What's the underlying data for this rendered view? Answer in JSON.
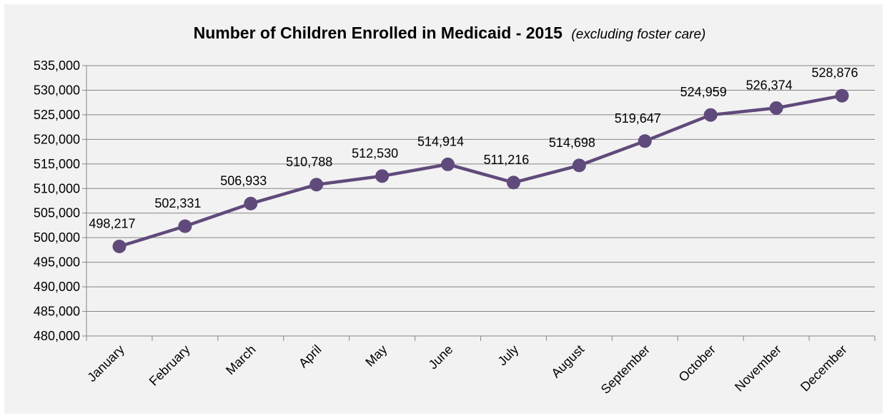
{
  "chart_data": {
    "type": "line",
    "title": "Number of Children  Enrolled  in Medicaid  - 2015",
    "subtitle": "(excluding foster care)",
    "xlabel": "",
    "ylabel": "",
    "categories": [
      "January",
      "February",
      "March",
      "April",
      "May",
      "June",
      "July",
      "August",
      "September",
      "October",
      "November",
      "December"
    ],
    "series": [
      {
        "values": [
          498217,
          502331,
          506933,
          510788,
          512530,
          514914,
          511216,
          514698,
          519647,
          524959,
          526374,
          528876
        ],
        "labels": [
          "498,217",
          "502,331",
          "506,933",
          "510,788",
          "512,530",
          "514,914",
          "511,216",
          "514,698",
          "519,647",
          "524,959",
          "526,374",
          "528,876"
        ]
      }
    ],
    "ylim": [
      480000,
      535000
    ],
    "yticks": [
      "480,000",
      "485,000",
      "490,000",
      "495,000",
      "500,000",
      "505,000",
      "510,000",
      "515,000",
      "520,000",
      "525,000",
      "530,000",
      "535,000"
    ],
    "grid": true,
    "legend": "none",
    "colors": {
      "series": "#604a7b",
      "background": "#f2f2f2",
      "gridline": "#868686"
    }
  }
}
